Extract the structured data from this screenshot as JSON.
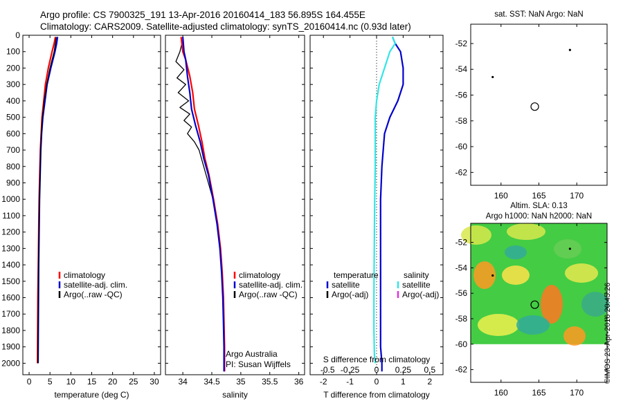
{
  "header": {
    "line1": "Argo profile: CS 7900325_191 13-Apr-2016 20160414_183 56.895S 164.455E",
    "line2": "Climatology: CARS2009. Satellite-adjusted climatology: synTS_20160414.nc (0.93d later)"
  },
  "side_label": "©IMOS 23-Apr-2016 20:45:26",
  "colors": {
    "climatology": "#ff0000",
    "satellite": "#0000cc",
    "argo": "#000000",
    "sal_sat": "#33e5e5",
    "sal_argo": "#dd33dd"
  },
  "chart_data": [
    {
      "id": "temperature",
      "type": "line",
      "xlabel": "temperature (deg C)",
      "xlim": [
        -1.5,
        31.5
      ],
      "xticks": [
        "0",
        "5",
        "10",
        "15",
        "20",
        "25",
        "30"
      ],
      "xtick_values": [
        0,
        5,
        10,
        15,
        20,
        25,
        30
      ],
      "ylim": [
        0,
        2070
      ],
      "yticks": [
        "0",
        "100",
        "200",
        "300",
        "400",
        "500",
        "600",
        "700",
        "800",
        "900",
        "1000",
        "1100",
        "1200",
        "1300",
        "1400",
        "1500",
        "1600",
        "1700",
        "1800",
        "1900",
        "2000"
      ],
      "ytick_values": [
        0,
        100,
        200,
        300,
        400,
        500,
        600,
        700,
        800,
        900,
        1000,
        1100,
        1200,
        1300,
        1400,
        1500,
        1600,
        1700,
        1800,
        1900,
        2000
      ],
      "legend": [
        "climatology",
        "satellite-adj. clim.",
        "Argo(..raw -QC)"
      ],
      "series": [
        {
          "name": "climatology",
          "color": "#ff0000",
          "x": [
            6.3,
            6.0,
            5.5,
            4.6,
            3.9,
            3.5,
            3.1,
            2.9,
            2.7,
            2.6,
            2.5,
            2.4,
            2.35,
            2.3,
            2.25,
            2.2,
            2.1,
            2.05,
            2.0
          ],
          "y": [
            10,
            50,
            100,
            200,
            300,
            400,
            500,
            600,
            700,
            800,
            900,
            1000,
            1100,
            1200,
            1300,
            1400,
            1600,
            1800,
            2000
          ]
        },
        {
          "name": "satellite-adj. clim.",
          "color": "#0000cc",
          "x": [
            6.8,
            6.6,
            6.2,
            5.2,
            4.3,
            3.8,
            3.3,
            3.0,
            2.8,
            2.7,
            2.6,
            2.5,
            2.45,
            2.4,
            2.35,
            2.3,
            2.25,
            2.2,
            2.15
          ],
          "y": [
            10,
            50,
            100,
            200,
            300,
            400,
            500,
            600,
            700,
            800,
            900,
            1000,
            1100,
            1200,
            1300,
            1400,
            1600,
            1800,
            2000
          ]
        },
        {
          "name": "Argo(..raw -QC)",
          "color": "#000000",
          "x": [
            6.5,
            6.3,
            6.0,
            5.0,
            4.2,
            3.6,
            3.2,
            2.9,
            2.8,
            2.7,
            2.6,
            2.5,
            2.4,
            2.35,
            2.3,
            2.25,
            2.2,
            2.15,
            2.1
          ],
          "y": [
            10,
            50,
            100,
            200,
            300,
            400,
            500,
            600,
            700,
            800,
            900,
            1000,
            1100,
            1200,
            1300,
            1400,
            1600,
            1800,
            2000
          ]
        }
      ]
    },
    {
      "id": "salinity",
      "type": "line",
      "xlabel": "salinity",
      "xlim": [
        33.7,
        36.1
      ],
      "xticks": [
        "34",
        "34.5",
        "35",
        "35.5",
        "36"
      ],
      "xtick_values": [
        34,
        34.5,
        35,
        35.5,
        36
      ],
      "ylim": [
        0,
        2070
      ],
      "legend": [
        "climatology",
        "satellite-adj. clim.",
        "Argo(..raw -QC)"
      ],
      "annotation": [
        "Argo Australia",
        "PI: Susan Wijffels"
      ],
      "series": [
        {
          "name": "climatology",
          "color": "#ff0000",
          "x": [
            33.97,
            34.0,
            34.05,
            34.12,
            34.17,
            34.2,
            34.27,
            34.33,
            34.38,
            34.45,
            34.53,
            34.6,
            34.65,
            34.68,
            34.7,
            34.71,
            34.72,
            34.72
          ],
          "y": [
            10,
            100,
            150,
            250,
            350,
            450,
            550,
            650,
            750,
            850,
            1000,
            1150,
            1300,
            1450,
            1600,
            1750,
            1900,
            2050
          ]
        },
        {
          "name": "satellite-adj. clim.",
          "color": "#0000cc",
          "x": [
            34.0,
            34.02,
            34.05,
            34.08,
            34.12,
            34.15,
            34.22,
            34.3,
            34.36,
            34.44,
            34.52,
            34.59,
            34.64,
            34.67,
            34.69,
            34.7,
            34.71,
            34.71
          ],
          "y": [
            10,
            100,
            150,
            250,
            350,
            450,
            550,
            650,
            750,
            850,
            1000,
            1150,
            1300,
            1450,
            1600,
            1750,
            1900,
            2050
          ]
        },
        {
          "name": "Argo(..raw -QC)",
          "color": "#000000",
          "x": [
            34.0,
            33.95,
            33.88,
            34.02,
            33.9,
            34.05,
            33.92,
            34.1,
            33.95,
            34.12,
            34.02,
            34.15,
            34.08,
            34.2,
            34.28,
            34.36,
            34.44,
            34.52,
            34.6,
            34.65,
            34.68,
            34.7
          ],
          "y": [
            30,
            100,
            160,
            210,
            260,
            300,
            350,
            400,
            440,
            480,
            520,
            560,
            600,
            650,
            700,
            800,
            900,
            1000,
            1150,
            1300,
            1450,
            1600
          ]
        }
      ]
    },
    {
      "id": "difference",
      "type": "line",
      "xlabel": "T difference from climatology",
      "xlabel2": "S difference from climatology",
      "xlim": [
        -2.5,
        2.5
      ],
      "xticks": [
        "-2",
        "-1",
        "0",
        "1",
        "2"
      ],
      "xtick_values": [
        -2,
        -1,
        0,
        1,
        2
      ],
      "xticks_top": [
        "-0.5",
        "-0.25",
        "0",
        "0.25",
        "0.5"
      ],
      "ylim": [
        0,
        2070
      ],
      "legend_temperature": [
        "temperature",
        "satellite",
        "Argo(-adj)"
      ],
      "legend_salinity": [
        "salinity",
        "satellite",
        "Argo(-adj)"
      ],
      "series": [
        {
          "name": "satellite",
          "color": "#0000cc",
          "x": [
            0.6,
            0.7,
            0.9,
            1.0,
            1.0,
            0.8,
            0.5,
            0.3,
            0.25,
            0.2,
            0.15,
            0.15,
            0.15,
            0.15,
            0.15,
            0.15,
            0.2,
            0.2
          ],
          "y": [
            10,
            50,
            100,
            200,
            300,
            400,
            500,
            600,
            700,
            800,
            1000,
            1200,
            1400,
            1600,
            1800,
            1900,
            2000,
            2050
          ]
        },
        {
          "name": "satellite",
          "color": "#33e5e5",
          "x": [
            0.6,
            0.7,
            0.5,
            0.3,
            0.1,
            0.0,
            -0.05,
            -0.05,
            -0.05,
            -0.05,
            -0.07,
            -0.08,
            -0.09,
            -0.1,
            -0.1,
            -0.08,
            -0.05
          ],
          "y": [
            10,
            50,
            100,
            200,
            300,
            400,
            500,
            600,
            700,
            800,
            1000,
            1200,
            1400,
            1600,
            1800,
            1950,
            2000
          ]
        }
      ]
    },
    {
      "id": "map_sst",
      "type": "scatter",
      "title": "sat. SST: NaN Argo: NaN",
      "xlim": [
        156,
        174
      ],
      "ylim": [
        -63,
        -50.5
      ],
      "xticks": [
        "160",
        "165",
        "170"
      ],
      "xtick_values": [
        160,
        165,
        170
      ],
      "yticks": [
        "-52",
        "-54",
        "-56",
        "-58",
        "-60",
        "-62"
      ],
      "ytick_values": [
        -52,
        -54,
        -56,
        -58,
        -60,
        -62
      ],
      "points": [
        {
          "x": 169.1,
          "y": -52.5,
          "kind": "dot"
        },
        {
          "x": 158.9,
          "y": -54.6,
          "kind": "dot"
        },
        {
          "x": 164.455,
          "y": -56.895,
          "kind": "circle"
        }
      ]
    },
    {
      "id": "map_sla",
      "type": "heatmap",
      "title": "Altim. SLA: 0.13",
      "subtitle": "Argo h1000: NaN h2000: NaN",
      "xlim": [
        156,
        174
      ],
      "ylim": [
        -63,
        -50.5
      ],
      "xticks": [
        "160",
        "165",
        "170"
      ],
      "xtick_values": [
        160,
        165,
        170
      ],
      "yticks": [
        "-52",
        "-54",
        "-56",
        "-58",
        "-60",
        "-62"
      ],
      "ytick_values": [
        -52,
        -54,
        -56,
        -58,
        -60,
        -62
      ],
      "data_extent_lat": [
        -60,
        -50.5
      ],
      "points": [
        {
          "x": 169.1,
          "y": -52.5,
          "kind": "dot"
        },
        {
          "x": 158.9,
          "y": -54.6,
          "kind": "dot"
        },
        {
          "x": 164.455,
          "y": -56.895,
          "kind": "circle"
        }
      ]
    }
  ]
}
